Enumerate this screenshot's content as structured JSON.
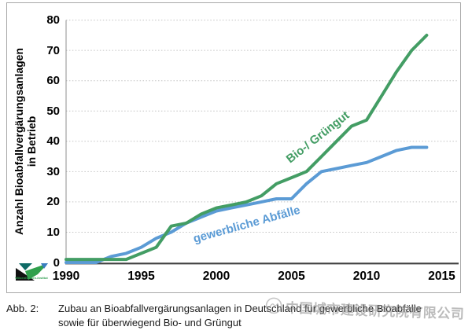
{
  "figure": {
    "y_axis_title_line1": "Anzahl Bioabfallvergärungsanlagen",
    "y_axis_title_line2": "in Betrieb"
  },
  "chart_data": {
    "type": "line",
    "title": "",
    "xlabel": "",
    "ylabel": "Anzahl Bioabfallvergärungsanlagen in Betrieb",
    "x": [
      1990,
      1991,
      1992,
      1993,
      1994,
      1995,
      1996,
      1997,
      1998,
      1999,
      2000,
      2001,
      2002,
      2003,
      2004,
      2005,
      2006,
      2007,
      2008,
      2009,
      2010,
      2011,
      2012,
      2013,
      2014
    ],
    "series": [
      {
        "name": "gewerbliche Abfälle",
        "color": "#5b9bd5",
        "values": [
          0,
          0,
          0,
          2,
          3,
          5,
          8,
          10,
          13,
          15,
          17,
          18,
          19,
          20,
          21,
          21,
          26,
          30,
          31,
          32,
          33,
          35,
          37,
          38,
          38
        ]
      },
      {
        "name": "Bio-/ Grüngut",
        "color": "#439d64",
        "values": [
          1,
          1,
          1,
          1,
          1,
          3,
          5,
          12,
          13,
          16,
          18,
          19,
          20,
          22,
          26,
          28,
          30,
          35,
          40,
          45,
          47,
          55,
          63,
          70,
          75
        ]
      }
    ],
    "xlim": [
      1990,
      2016
    ],
    "ylim": [
      0,
      80
    ],
    "x_ticks": [
      1990,
      1995,
      2000,
      2005,
      2010,
      2015
    ],
    "y_ticks": [
      0,
      10,
      20,
      30,
      40,
      50,
      60,
      70,
      80
    ],
    "grid": true,
    "legend": "inline rotated labels on lines"
  },
  "logo": {
    "text": "Witzenhausen-Institut"
  },
  "caption": {
    "label": "Abb. 2:",
    "line1": "Zubau an Bioabfallvergärungsanlagen in Deutschland für gewerbliche Bioabfälle",
    "line2": "sowie für überwiegend Bio- und Grüngut"
  },
  "watermark": {
    "text": "中国城市建设研究院有限公司"
  }
}
